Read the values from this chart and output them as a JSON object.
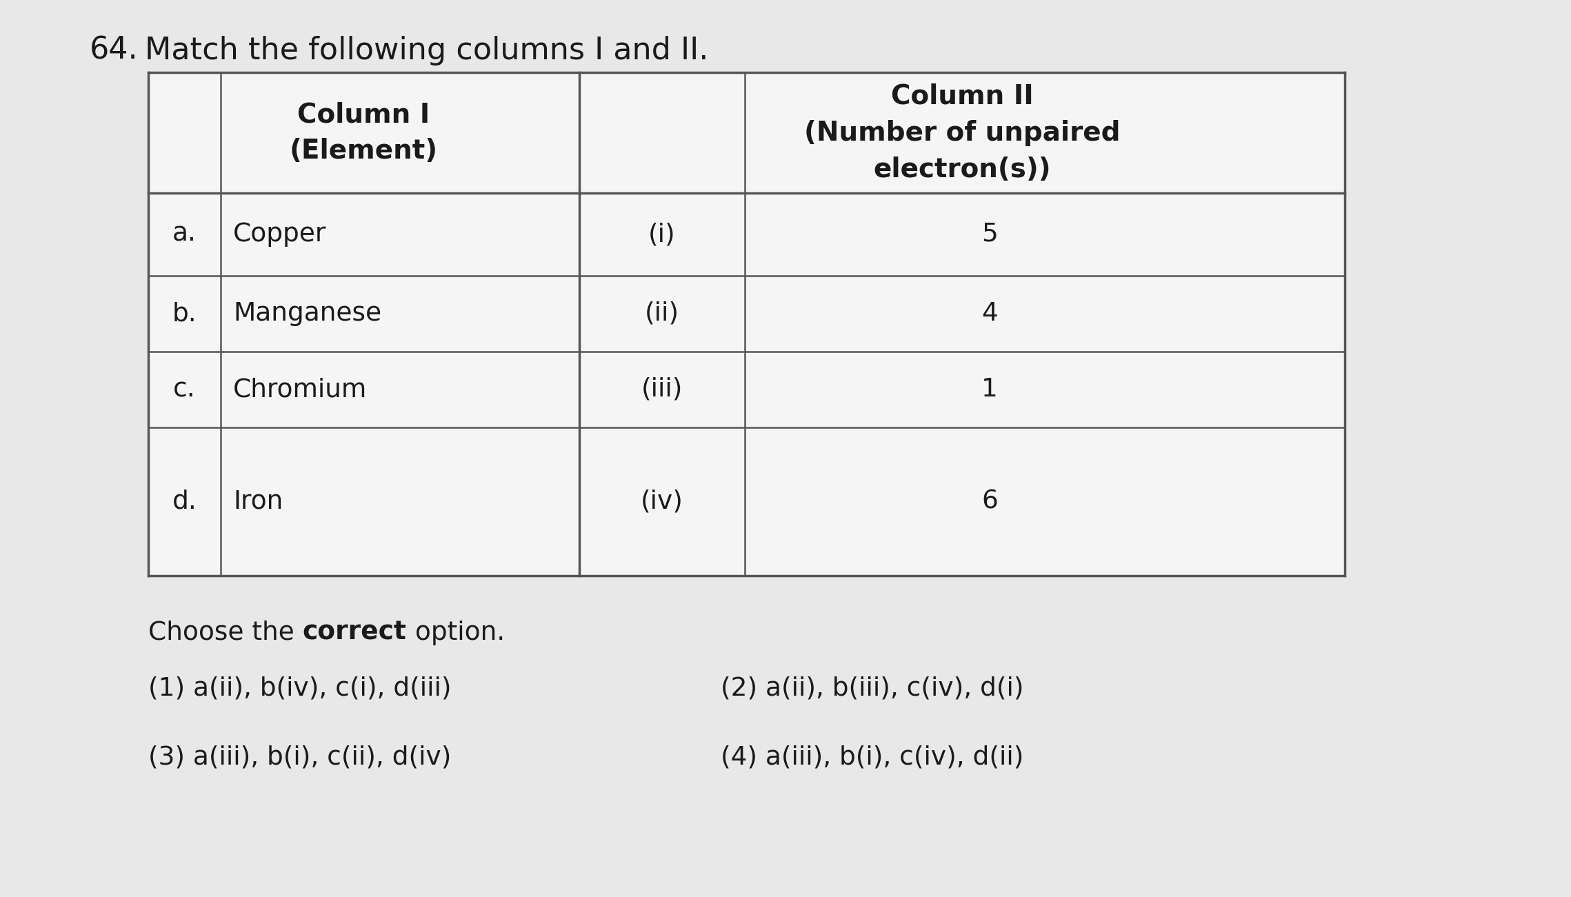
{
  "question_number": "64.",
  "question_text": "  Match the following columns I and II.",
  "col1_header": "Column I\n(Element)",
  "col2_header": "Column II\n(Number of unpaired\nelectron(s))",
  "rows": [
    {
      "letter": "a.",
      "element": "Copper",
      "roman": "(i)",
      "number": "5"
    },
    {
      "letter": "b.",
      "element": "Manganese",
      "roman": "(ii)",
      "number": "4"
    },
    {
      "letter": "c.",
      "element": "Chromium",
      "roman": "(iii)",
      "number": "1"
    },
    {
      "letter": "d.",
      "element": "Iron",
      "roman": "(iv)",
      "number": "6"
    }
  ],
  "choose_pre": "Choose the ",
  "choose_bold": "correct",
  "choose_post": " option.",
  "options": [
    {
      "num": "(1)",
      "text": " a(ii), b(iv), c(i), d(iii)"
    },
    {
      "num": "(2)",
      "text": " a(ii), b(iii), c(iv), d(i)"
    },
    {
      "num": "(3)",
      "text": " a(iii), b(i), c(ii), d(iv)"
    },
    {
      "num": "(4)",
      "text": " a(iii), b(i), c(iv), d(ii)"
    }
  ],
  "bg_color": "#e8e8e8",
  "text_color": "#1a1a1a",
  "table_bg": "#f5f5f5",
  "line_color": "#555555",
  "font_size_question": 32,
  "font_size_header": 28,
  "font_size_body": 27,
  "font_size_options": 27,
  "font_size_choose": 27
}
